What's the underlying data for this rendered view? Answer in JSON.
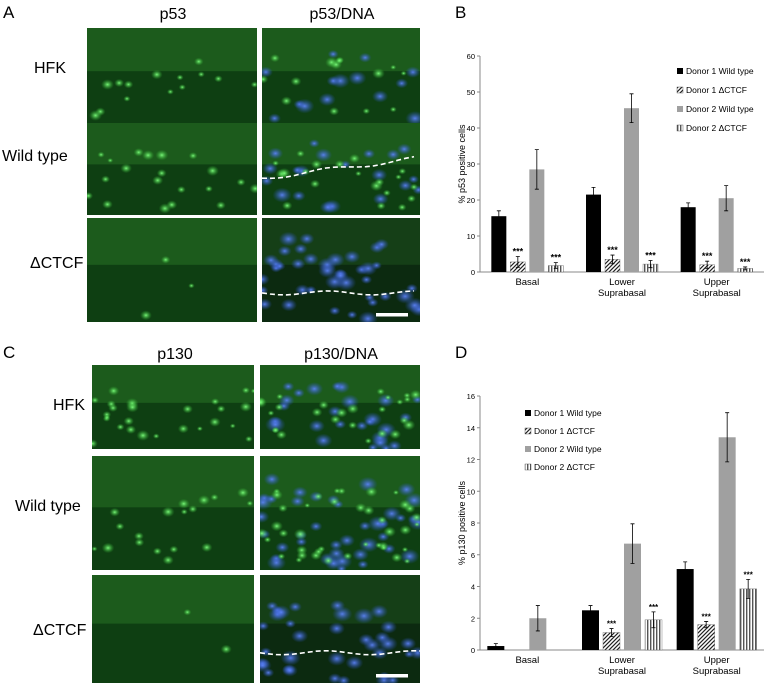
{
  "panels": {
    "A": {
      "letter": "A",
      "col_titles": [
        "p53",
        "p53/DNA"
      ],
      "row_labels": [
        "HFK",
        "Wild type",
        "ΔCTCF"
      ]
    },
    "B": {
      "letter": "B"
    },
    "C": {
      "letter": "C",
      "col_titles": [
        "p130",
        "p130/DNA"
      ],
      "row_labels": [
        "HFK",
        "Wild type",
        "ΔCTCF"
      ]
    },
    "D": {
      "letter": "D"
    }
  },
  "colors": {
    "donor1_wt": "#000000",
    "donor1_ctcf": "#555555",
    "donor2_wt": "#a0a0a0",
    "donor2_ctcf": "#777777",
    "green_channel": "#1f7a1f",
    "blue_channel": "#2a50c8"
  },
  "chart_data": [
    {
      "type": "bar",
      "panel": "B",
      "categories": [
        "Basal",
        "Lower\nSuprabasal",
        "Upper\nSuprabasal"
      ],
      "ylabel": "% p53 positive cells",
      "ylim": [
        0,
        60
      ],
      "yticks": [
        0,
        10,
        20,
        30,
        40,
        50,
        60
      ],
      "legend_position": "top-right",
      "series": [
        {
          "name": "Donor 1 Wild type",
          "values": [
            15.5,
            21.5,
            18.0
          ],
          "errors": [
            1.5,
            2.0,
            1.2
          ],
          "pattern": "solid-black"
        },
        {
          "name": "Donor 1 ΔCTCF",
          "values": [
            2.8,
            3.5,
            2.0
          ],
          "errors": [
            1.5,
            1.2,
            1.0
          ],
          "pattern": "diagonal"
        },
        {
          "name": "Donor 2 Wild type",
          "values": [
            28.5,
            45.5,
            20.5
          ],
          "errors": [
            5.5,
            4.0,
            3.5
          ],
          "pattern": "solid-gray"
        },
        {
          "name": "Donor 2 ΔCTCF",
          "values": [
            1.8,
            2.2,
            1.0
          ],
          "errors": [
            0.8,
            1.0,
            0.4
          ],
          "pattern": "vertical"
        }
      ],
      "annotations": [
        {
          "category": 0,
          "series": 1,
          "text": "***"
        },
        {
          "category": 0,
          "series": 3,
          "text": "***"
        },
        {
          "category": 1,
          "series": 1,
          "text": "***"
        },
        {
          "category": 1,
          "series": 3,
          "text": "***"
        },
        {
          "category": 2,
          "series": 1,
          "text": "***"
        },
        {
          "category": 2,
          "series": 3,
          "text": "***"
        }
      ]
    },
    {
      "type": "bar",
      "panel": "D",
      "categories": [
        "Basal",
        "Lower\nSuprabasal",
        "Upper\nSuprabasal"
      ],
      "ylabel": "% p130 positive cells",
      "ylim": [
        0,
        16
      ],
      "yticks": [
        0,
        2,
        4,
        6,
        8,
        10,
        12,
        14,
        16
      ],
      "legend_position": "top-left",
      "series": [
        {
          "name": "Donor 1 Wild type",
          "values": [
            0.25,
            2.5,
            5.1
          ],
          "errors": [
            0.15,
            0.3,
            0.45
          ],
          "pattern": "solid-black"
        },
        {
          "name": "Donor 1 ΔCTCF",
          "values": [
            0,
            1.1,
            1.6
          ],
          "errors": [
            0,
            0.25,
            0.2
          ],
          "pattern": "diagonal"
        },
        {
          "name": "Donor 2 Wild type",
          "values": [
            2.0,
            6.7,
            13.4
          ],
          "errors": [
            0.8,
            1.25,
            1.55
          ],
          "pattern": "solid-gray"
        },
        {
          "name": "Donor 2 ΔCTCF",
          "values": [
            0,
            1.9,
            3.85
          ],
          "errors": [
            0,
            0.5,
            0.6
          ],
          "pattern": "vertical"
        }
      ],
      "annotations": [
        {
          "category": 1,
          "series": 1,
          "text": "***"
        },
        {
          "category": 1,
          "series": 3,
          "text": "***"
        },
        {
          "category": 2,
          "series": 1,
          "text": "***"
        },
        {
          "category": 2,
          "series": 3,
          "text": "***"
        }
      ]
    }
  ]
}
